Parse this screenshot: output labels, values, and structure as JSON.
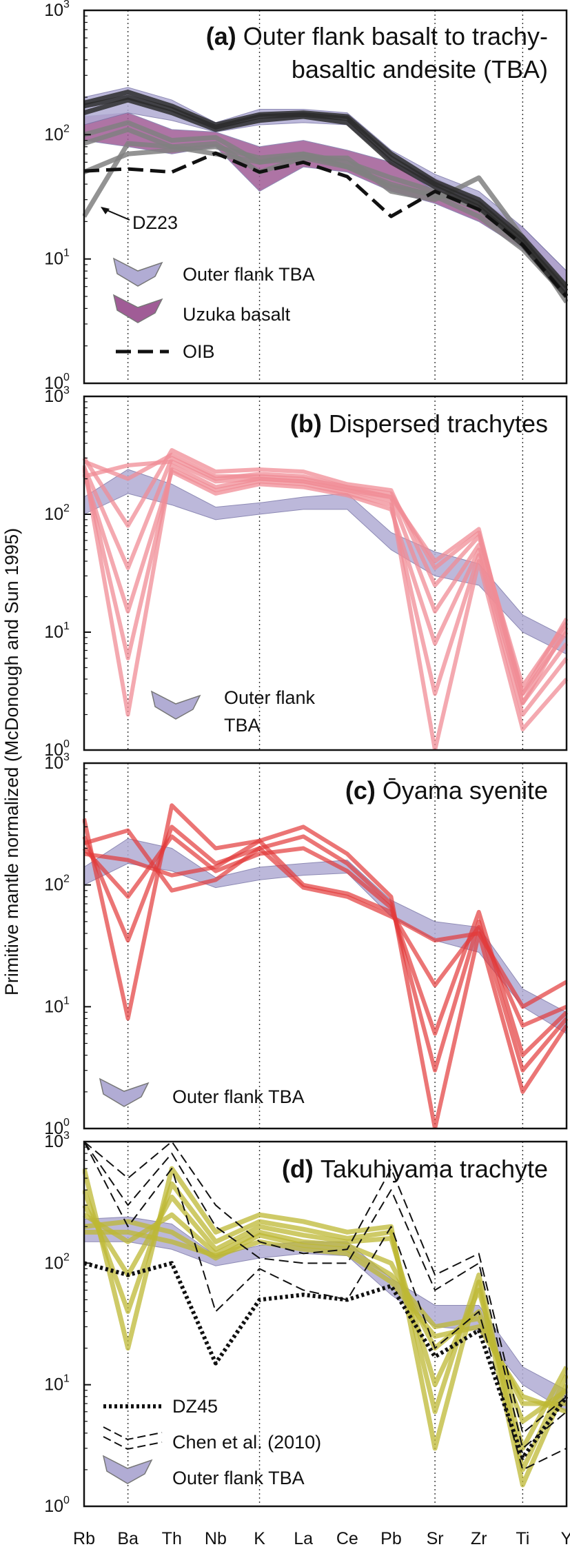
{
  "figure": {
    "ylabel": "Primitive mantle normalized (McDonough and Sun 1995)",
    "elements": [
      "Rb",
      "Ba",
      "Th",
      "Nb",
      "K",
      "La",
      "Ce",
      "Pb",
      "Sr",
      "Zr",
      "Ti",
      "Y"
    ],
    "y_ticks": [
      "10",
      "10",
      "10",
      "10"
    ],
    "y_tick_exponents": [
      "0",
      "1",
      "2",
      "3"
    ],
    "colors": {
      "tba_band": "#b1acd4",
      "uzuka_band": "#a05c96",
      "dispersed": "#f08c96",
      "oyama": "#e23a3a",
      "takuhiyama": "#bdb834",
      "dark_lines": "#2b2b2b",
      "gray_lines": "#808080"
    }
  },
  "chart_data": [
    {
      "type": "line",
      "panel": "a",
      "title_letter": "(a)",
      "title_text": "Outer flank basalt to trachy-",
      "title_text2": "basaltic andesite (TBA)",
      "yscale": "log",
      "ylim": [
        1,
        1000
      ],
      "categories": [
        "Rb",
        "Ba",
        "Th",
        "Nb",
        "K",
        "La",
        "Ce",
        "Pb",
        "Sr",
        "Zr",
        "Ti",
        "Y"
      ],
      "tba_band_low": [
        120,
        150,
        130,
        105,
        120,
        125,
        120,
        60,
        35,
        25,
        12,
        5
      ],
      "tba_band_high": [
        200,
        240,
        190,
        125,
        160,
        160,
        150,
        75,
        48,
        35,
        18,
        8
      ],
      "uzuka_band_low": [
        90,
        80,
        70,
        80,
        35,
        55,
        50,
        35,
        28,
        20,
        12,
        5
      ],
      "uzuka_band_high": [
        140,
        150,
        110,
        105,
        80,
        90,
        75,
        60,
        45,
        30,
        18,
        8
      ],
      "dark_series": [
        [
          180,
          220,
          170,
          120,
          145,
          150,
          140,
          70,
          42,
          30,
          15,
          6
        ],
        [
          170,
          200,
          160,
          115,
          140,
          145,
          135,
          65,
          40,
          28,
          14,
          5.5
        ],
        [
          150,
          190,
          150,
          110,
          130,
          140,
          125,
          60,
          38,
          26,
          13,
          5
        ]
      ],
      "gray_series": [
        [
          100,
          125,
          90,
          95,
          60,
          70,
          60,
          45,
          35,
          25,
          13,
          6
        ],
        [
          85,
          110,
          80,
          85,
          50,
          65,
          55,
          40,
          32,
          22,
          12,
          5
        ],
        [
          22,
          85,
          80,
          70,
          60,
          65,
          65,
          35,
          30,
          45,
          15,
          4.5
        ],
        [
          50,
          70,
          75,
          80,
          65,
          70,
          55,
          38,
          33,
          28,
          14,
          5
        ]
      ],
      "oib": [
        51,
        53,
        50,
        71,
        50,
        60,
        46,
        22,
        35,
        25,
        13,
        5
      ],
      "annotation": "DZ23",
      "legend": [
        "Outer flank TBA",
        "Uzuka basalt",
        "OIB"
      ]
    },
    {
      "type": "line",
      "panel": "b",
      "title_letter": "(b)",
      "title_text": "Dispersed trachytes",
      "yscale": "log",
      "ylim": [
        1,
        1000
      ],
      "categories": [
        "Rb",
        "Ba",
        "Th",
        "Nb",
        "K",
        "La",
        "Ce",
        "Pb",
        "Sr",
        "Zr",
        "Ti",
        "Y"
      ],
      "tba_band_low": [
        100,
        150,
        120,
        90,
        100,
        110,
        110,
        50,
        30,
        25,
        10,
        6.5
      ],
      "tba_band_high": [
        140,
        240,
        180,
        115,
        125,
        140,
        150,
        70,
        48,
        38,
        14,
        9
      ],
      "series": [
        [
          260,
          2,
          260,
          170,
          200,
          190,
          160,
          130,
          1,
          40,
          1.5,
          4
        ],
        [
          240,
          6,
          240,
          160,
          190,
          180,
          150,
          120,
          3,
          45,
          2,
          6
        ],
        [
          220,
          15,
          230,
          150,
          180,
          170,
          145,
          110,
          8,
          50,
          2.5,
          8
        ],
        [
          250,
          35,
          300,
          200,
          220,
          210,
          170,
          140,
          15,
          55,
          3,
          10
        ],
        [
          300,
          80,
          350,
          230,
          240,
          230,
          180,
          160,
          25,
          65,
          3.5,
          12
        ],
        [
          280,
          200,
          320,
          210,
          210,
          200,
          170,
          150,
          35,
          70,
          3,
          13
        ],
        [
          210,
          260,
          280,
          190,
          200,
          190,
          160,
          140,
          40,
          75,
          2.5,
          11
        ]
      ],
      "legend": [
        "Outer flank",
        "TBA"
      ]
    },
    {
      "type": "line",
      "panel": "c",
      "title_letter": "(c)",
      "title_text": "Ōyama syenite",
      "yscale": "log",
      "ylim": [
        1,
        1000
      ],
      "categories": [
        "Rb",
        "Ba",
        "Th",
        "Nb",
        "K",
        "La",
        "Ce",
        "Pb",
        "Sr",
        "Zr",
        "Ti",
        "Y"
      ],
      "tba_band_low": [
        100,
        150,
        130,
        95,
        110,
        120,
        125,
        55,
        35,
        28,
        10,
        6
      ],
      "tba_band_high": [
        140,
        240,
        200,
        115,
        140,
        150,
        160,
        75,
        50,
        45,
        14,
        9
      ],
      "series": [
        [
          350,
          8,
          450,
          200,
          230,
          300,
          180,
          80,
          1,
          40,
          2,
          7
        ],
        [
          250,
          35,
          300,
          150,
          200,
          250,
          150,
          70,
          3,
          50,
          3,
          8
        ],
        [
          200,
          80,
          250,
          130,
          180,
          200,
          130,
          65,
          6,
          60,
          4,
          9
        ],
        [
          180,
          160,
          120,
          140,
          230,
          100,
          85,
          60,
          15,
          45,
          7,
          10
        ],
        [
          220,
          280,
          90,
          110,
          200,
          95,
          80,
          55,
          35,
          40,
          10,
          16
        ]
      ],
      "legend": [
        "Outer flank TBA"
      ]
    },
    {
      "type": "line",
      "panel": "d",
      "title_letter": "(d)",
      "title_text": "Takuhiyama trachyte",
      "yscale": "log",
      "ylim": [
        1,
        1000
      ],
      "categories": [
        "Rb",
        "Ba",
        "Th",
        "Nb",
        "K",
        "La",
        "Ce",
        "Pb",
        "Sr",
        "Zr",
        "Ti",
        "Y"
      ],
      "tba_band_low": [
        150,
        150,
        130,
        95,
        110,
        120,
        115,
        55,
        30,
        28,
        10,
        6
      ],
      "tba_band_high": [
        230,
        240,
        210,
        115,
        140,
        150,
        150,
        75,
        45,
        45,
        14,
        9
      ],
      "series": [
        [
          600,
          20,
          600,
          180,
          250,
          220,
          180,
          200,
          3,
          70,
          1.5,
          10
        ],
        [
          400,
          40,
          450,
          150,
          220,
          190,
          160,
          180,
          6,
          80,
          2,
          12
        ],
        [
          300,
          80,
          350,
          130,
          200,
          170,
          150,
          160,
          10,
          60,
          3,
          14
        ],
        [
          250,
          150,
          250,
          120,
          180,
          150,
          140,
          100,
          20,
          40,
          5,
          9
        ],
        [
          200,
          220,
          180,
          110,
          170,
          140,
          130,
          80,
          30,
          35,
          7,
          7
        ],
        [
          180,
          180,
          150,
          115,
          150,
          130,
          120,
          70,
          25,
          30,
          8,
          6
        ]
      ],
      "dz45": [
        100,
        80,
        100,
        15,
        50,
        55,
        50,
        65,
        17,
        28,
        2.5,
        8
      ],
      "chen_series": [
        [
          1000,
          500,
          1000,
          300,
          150,
          120,
          130,
          600,
          80,
          120,
          4,
          8
        ],
        [
          1000,
          300,
          800,
          200,
          110,
          100,
          100,
          400,
          60,
          100,
          3,
          6
        ],
        [
          1000,
          200,
          600,
          40,
          90,
          60,
          50,
          200,
          20,
          40,
          2,
          3
        ]
      ],
      "legend": [
        "DZ45",
        "Chen et al. (2010)",
        "Outer flank TBA"
      ]
    }
  ]
}
